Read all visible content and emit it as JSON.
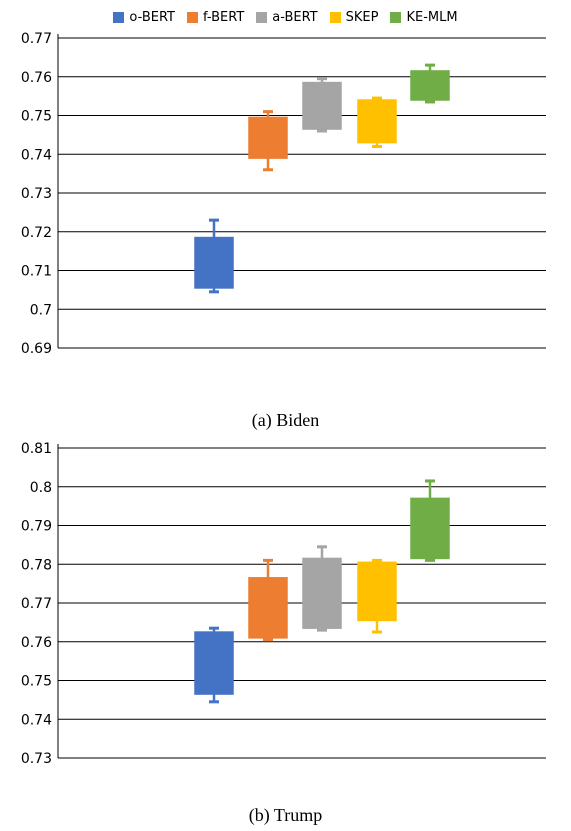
{
  "legend": [
    {
      "name": "o-BERT",
      "color": "#4472C4"
    },
    {
      "name": "f-BERT",
      "color": "#ED7D31"
    },
    {
      "name": "a-BERT",
      "color": "#A5A5A5"
    },
    {
      "name": "SKEP",
      "color": "#FFC000"
    },
    {
      "name": "KE-MLM",
      "color": "#70AD47"
    }
  ],
  "captions": {
    "a": "(a) Biden",
    "b": "(b) Trump"
  },
  "chart_data": [
    {
      "type": "box",
      "title": "(a) Biden",
      "ylim": [
        0.69,
        0.77
      ],
      "yticks": [
        0.69,
        0.7,
        0.71,
        0.72,
        0.73,
        0.74,
        0.75,
        0.76,
        0.77
      ],
      "ytick_labels": [
        "0.69",
        "0.7",
        "0.71",
        "0.72",
        "0.73",
        "0.74",
        "0.75",
        "0.76",
        "0.77"
      ],
      "grid": true,
      "series": [
        {
          "name": "o-BERT",
          "min": 0.7045,
          "q1": 0.7055,
          "q3": 0.7185,
          "max": 0.723
        },
        {
          "name": "f-BERT",
          "min": 0.736,
          "q1": 0.739,
          "q3": 0.7495,
          "max": 0.751
        },
        {
          "name": "a-BERT",
          "min": 0.746,
          "q1": 0.7465,
          "q3": 0.7585,
          "max": 0.7595
        },
        {
          "name": "SKEP",
          "min": 0.742,
          "q1": 0.743,
          "q3": 0.754,
          "max": 0.7545
        },
        {
          "name": "KE-MLM",
          "min": 0.7535,
          "q1": 0.754,
          "q3": 0.7615,
          "max": 0.763
        }
      ]
    },
    {
      "type": "box",
      "title": "(b) Trump",
      "ylim": [
        0.73,
        0.81
      ],
      "yticks": [
        0.73,
        0.74,
        0.75,
        0.76,
        0.77,
        0.78,
        0.79,
        0.8,
        0.81
      ],
      "ytick_labels": [
        "0.73",
        "0.74",
        "0.75",
        "0.76",
        "0.77",
        "0.78",
        "0.79",
        "0.8",
        "0.81"
      ],
      "grid": true,
      "series": [
        {
          "name": "o-BERT",
          "min": 0.7445,
          "q1": 0.7465,
          "q3": 0.7625,
          "max": 0.7635
        },
        {
          "name": "f-BERT",
          "min": 0.7605,
          "q1": 0.761,
          "q3": 0.7765,
          "max": 0.781
        },
        {
          "name": "a-BERT",
          "min": 0.763,
          "q1": 0.7635,
          "q3": 0.7815,
          "max": 0.7845
        },
        {
          "name": "SKEP",
          "min": 0.7625,
          "q1": 0.7655,
          "q3": 0.7805,
          "max": 0.781
        },
        {
          "name": "KE-MLM",
          "min": 0.781,
          "q1": 0.7815,
          "q3": 0.797,
          "max": 0.8015
        }
      ]
    }
  ]
}
